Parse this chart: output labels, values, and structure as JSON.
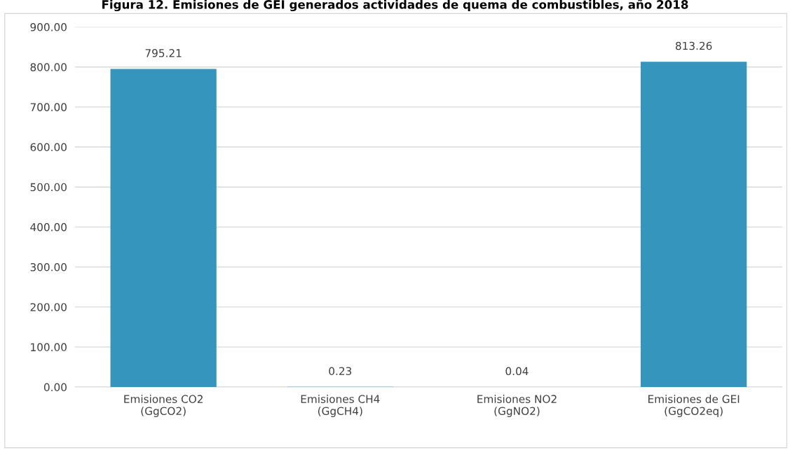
{
  "chart_data": {
    "type": "bar",
    "title": "Figura 12. Emisiones de GEI generados actividades de quema de combustibles, año 2018",
    "categories": [
      "Emisiones CO2\n(GgCO2)",
      "Emisiones CH4\n(GgCH4)",
      "Emisiones NO2\n(GgNO2)",
      "Emisiones de GEI\n(GgCO2eq)"
    ],
    "values": [
      795.21,
      0.23,
      0.04,
      813.26
    ],
    "color": "#3595bc",
    "ylim": [
      0,
      900
    ],
    "yticks": [
      {
        "value": 0,
        "label": "0.00"
      },
      {
        "value": 100,
        "label": "100.00"
      },
      {
        "value": 200,
        "label": "200.00"
      },
      {
        "value": 300,
        "label": "300.00"
      },
      {
        "value": 400,
        "label": "400.00"
      },
      {
        "value": 500,
        "label": "500.00"
      },
      {
        "value": 600,
        "label": "600.00"
      },
      {
        "value": 700,
        "label": "700.00"
      },
      {
        "value": 800,
        "label": "800.00"
      },
      {
        "value": 900,
        "label": "900.00"
      }
    ],
    "grid": "y",
    "data_labels": true
  }
}
